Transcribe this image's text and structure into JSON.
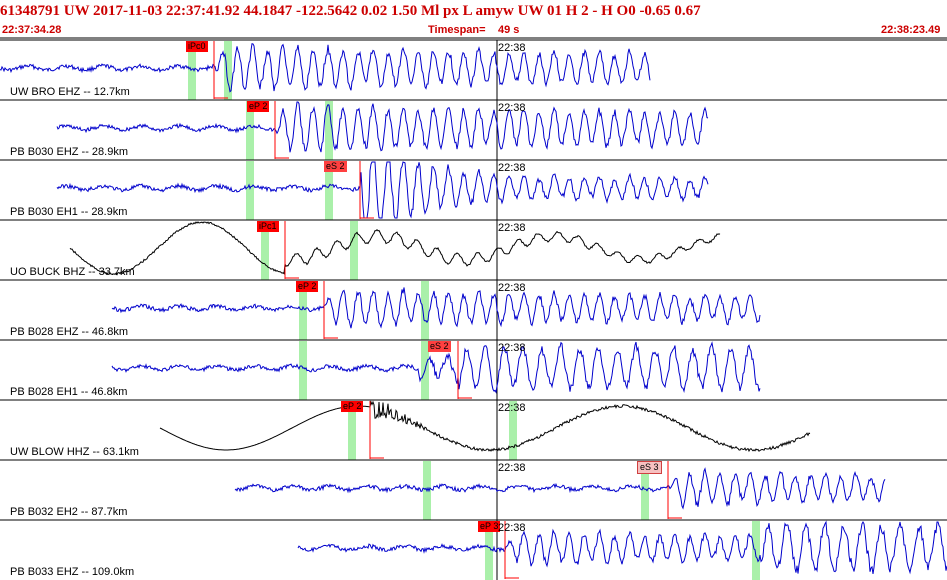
{
  "header": {
    "event_line": "61348791 UW 2017-11-03 22:37:41.92    44.1847 -122.5642    0.02   1.50 Ml   px   L  amyw      UW 01   H    2   -   H O0     -0.65   0.67",
    "start_time": "22:37:34.28",
    "timespan_label": "Timespan=",
    "timespan_value": "49 s",
    "end_time": "22:38:23.49"
  },
  "time_tick": "22:38",
  "colors": {
    "header_text": "#cc0000",
    "trace_blue": "#0000cc",
    "trace_black": "#000000",
    "pick_red": "#ff0000",
    "window_green": "#aaf0aa"
  },
  "tracks": [
    {
      "label": "UW BRO EHZ -- 12.7km",
      "color": "blue",
      "picks": [
        {
          "text": "iPc0"
        }
      ]
    },
    {
      "label": "PB B030 EHZ -- 28.9km",
      "color": "blue",
      "picks": [
        {
          "text": "eP 2"
        }
      ]
    },
    {
      "label": "PB B030 EH1 -- 28.9km",
      "color": "blue",
      "picks": [
        {
          "text": "eS 2"
        }
      ]
    },
    {
      "label": "UO BUCK BHZ -- 33.7km",
      "color": "black",
      "picks": [
        {
          "text": "iPc1"
        }
      ]
    },
    {
      "label": "PB B028 EHZ -- 46.8km",
      "color": "blue",
      "picks": [
        {
          "text": "eP 2"
        }
      ]
    },
    {
      "label": "PB B028 EH1 -- 46.8km",
      "color": "blue",
      "picks": [
        {
          "text": "eS 2"
        }
      ]
    },
    {
      "label": "UW BLOW HHZ -- 63.1km",
      "color": "black",
      "picks": [
        {
          "text": "eP 2"
        }
      ]
    },
    {
      "label": "PB B032 EH2 -- 87.7km",
      "color": "blue",
      "picks": [
        {
          "text": "eS 3"
        }
      ]
    },
    {
      "label": "PB B033 EHZ -- 109.0km",
      "color": "blue",
      "picks": [
        {
          "text": "eP 3"
        }
      ]
    }
  ]
}
